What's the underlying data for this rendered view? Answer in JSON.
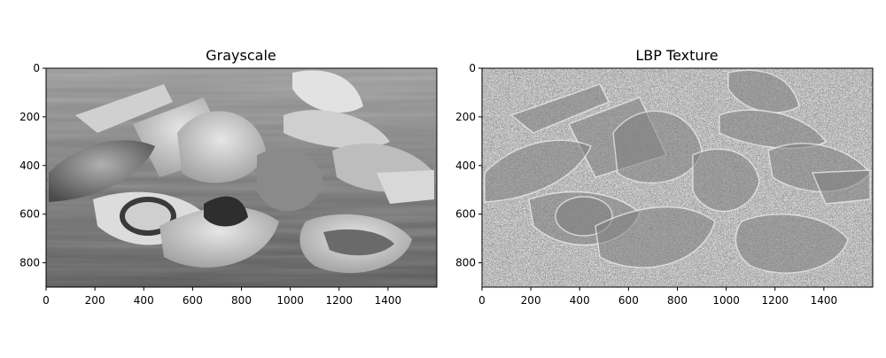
{
  "figure": {
    "panels": [
      {
        "title": "Grayscale",
        "x_ticks": [
          "0",
          "200",
          "400",
          "600",
          "800",
          "1000",
          "1200",
          "1400"
        ],
        "y_ticks": [
          "0",
          "200",
          "400",
          "600",
          "800"
        ],
        "x_range": [
          0,
          1600
        ],
        "y_range": [
          0,
          900
        ],
        "image_description_kind": "grayscale-photo"
      },
      {
        "title": "LBP Texture",
        "x_ticks": [
          "0",
          "200",
          "400",
          "600",
          "800",
          "1000",
          "1200",
          "1400"
        ],
        "y_ticks": [
          "0",
          "200",
          "400",
          "600",
          "800"
        ],
        "x_range": [
          0,
          1600
        ],
        "y_range": [
          0,
          900
        ],
        "image_description_kind": "lbp-texture-map"
      }
    ]
  }
}
